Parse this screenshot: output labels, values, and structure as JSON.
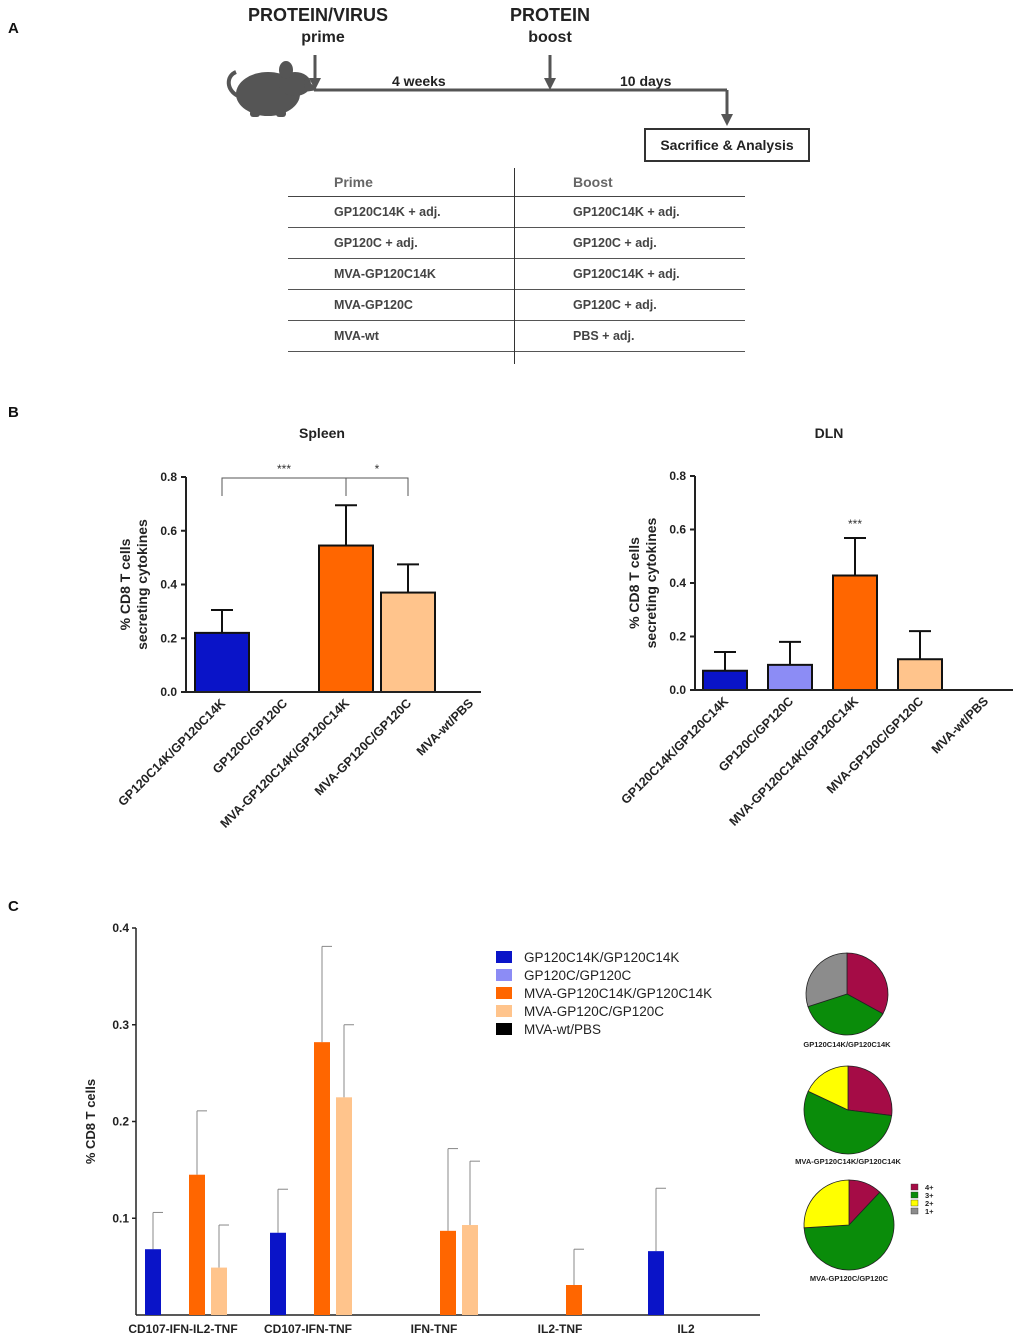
{
  "panels": {
    "a": "A",
    "b": "B",
    "c": "C"
  },
  "schedule": {
    "prime_title": "PROTEIN/VIRUS",
    "prime_label": "prime",
    "boost_title": "PROTEIN",
    "boost_label": "boost",
    "interval_1": "4 weeks",
    "interval_2": "10 days",
    "endpoint": "Sacrifice & Analysis"
  },
  "table": {
    "headers": [
      "Prime",
      "Boost"
    ],
    "rows": [
      [
        "GP120C14K + adj.",
        "GP120C14K + adj."
      ],
      [
        "GP120C + adj.",
        "GP120C + adj."
      ],
      [
        "MVA-GP120C14K",
        "GP120C14K + adj."
      ],
      [
        "MVA-GP120C",
        "GP120C + adj."
      ],
      [
        "MVA-wt",
        "PBS + adj."
      ]
    ]
  },
  "colors": {
    "GP120C14K/GP120C14K": "#0a14c8",
    "GP120C/GP120C": "#8c8cf5",
    "MVA-GP120C14K/GP120C14K": "#ff6600",
    "MVA-GP120C/GP120C": "#ffc48c",
    "MVA-wt/PBS": "#000000",
    "4+": "#a50c46",
    "3+": "#0a8c0a",
    "2+": "#ffff00",
    "1+": "#8c8c8c"
  },
  "chart_data": [
    {
      "type": "bar",
      "title": "Spleen",
      "ylabel_line1": "% CD8 T cells",
      "ylabel_line2": "secreting cytokines",
      "ylim": [
        0,
        0.8
      ],
      "yticks": [
        "0.0",
        "0.2",
        "0.4",
        "0.6",
        "0.8"
      ],
      "categories": [
        "GP120C14K/GP120C14K",
        "GP120C/GP120C",
        "MVA-GP120C14K/GP120C14K",
        "MVA-GP120C/GP120C",
        "MVA-wt/PBS"
      ],
      "values": [
        0.22,
        0,
        0.545,
        0.37,
        0
      ],
      "errors": [
        0.085,
        0,
        0.15,
        0.105,
        0
      ],
      "significance": [
        {
          "from": 0,
          "to": 2,
          "label": "***"
        },
        {
          "from": 2,
          "to": 3,
          "label": "*"
        }
      ]
    },
    {
      "type": "bar",
      "title": "DLN",
      "ylabel_line1": "% CD8 T cells",
      "ylabel_line2": "secreting cytokines",
      "ylim": [
        0,
        0.8
      ],
      "yticks": [
        "0.0",
        "0.2",
        "0.4",
        "0.6",
        "0.8"
      ],
      "categories": [
        "GP120C14K/GP120C14K",
        "GP120C/GP120C",
        "MVA-GP120C14K/GP120C14K",
        "MVA-GP120C/GP120C",
        "MVA-wt/PBS"
      ],
      "values": [
        0.072,
        0.094,
        0.428,
        0.115,
        0
      ],
      "errors": [
        0.07,
        0.086,
        0.14,
        0.105,
        0
      ],
      "annotations": [
        {
          "index": 2,
          "label": "***"
        }
      ]
    },
    {
      "type": "bar",
      "ylabel": "% CD8 T cells",
      "ylim": [
        0,
        0.4
      ],
      "yticks": [
        "0.1",
        "0.2",
        "0.3",
        "0.4"
      ],
      "categories": [
        "CD107-IFN-IL2-TNF",
        "CD107-IFN-TNF",
        "IFN-TNF",
        "IL2-TNF",
        "IL2"
      ],
      "series": [
        {
          "name": "GP120C14K/GP120C14K",
          "values": [
            0.068,
            0.085,
            0,
            0,
            0.066
          ],
          "errors": [
            0.038,
            0.045,
            0,
            0,
            0.065
          ]
        },
        {
          "name": "GP120C/GP120C",
          "values": [
            0,
            0,
            0,
            0,
            0
          ],
          "errors": [
            0,
            0,
            0,
            0,
            0
          ]
        },
        {
          "name": "MVA-GP120C14K/GP120C14K",
          "values": [
            0.145,
            0.282,
            0.087,
            0.031,
            0
          ],
          "errors": [
            0.066,
            0.099,
            0.085,
            0.037,
            0
          ]
        },
        {
          "name": "MVA-GP120C/GP120C",
          "values": [
            0.049,
            0.225,
            0.093,
            0,
            0
          ],
          "errors": [
            0.044,
            0.075,
            0.066,
            0,
            0
          ]
        },
        {
          "name": "MVA-wt/PBS",
          "values": [
            0,
            0,
            0,
            0,
            0
          ],
          "errors": [
            0,
            0,
            0,
            0,
            0
          ]
        }
      ],
      "legend": [
        "GP120C14K/GP120C14K",
        "GP120C/GP120C",
        "MVA-GP120C14K/GP120C14K",
        "MVA-GP120C/GP120C",
        "MVA-wt/PBS"
      ]
    },
    {
      "type": "pie",
      "title": "GP120C14K/GP120C14K",
      "labels": [
        "4+",
        "3+",
        "2+",
        "1+"
      ],
      "values": [
        0.33,
        0.37,
        0,
        0.3
      ]
    },
    {
      "type": "pie",
      "title": "MVA-GP120C14K/GP120C14K",
      "labels": [
        "4+",
        "3+",
        "2+",
        "1+"
      ],
      "values": [
        0.27,
        0.55,
        0.18,
        0
      ]
    },
    {
      "type": "pie",
      "title": "MVA-GP120C/GP120C",
      "labels": [
        "4+",
        "3+",
        "2+",
        "1+"
      ],
      "values": [
        0.12,
        0.62,
        0.26,
        0
      ],
      "legend": [
        "4+",
        "3+",
        "2+",
        "1+"
      ]
    }
  ]
}
